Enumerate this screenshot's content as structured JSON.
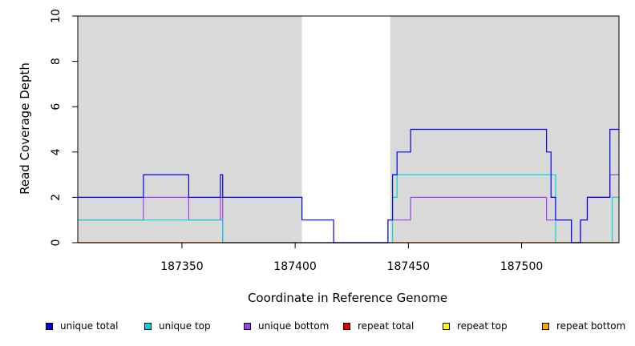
{
  "chart_data": {
    "type": "line",
    "xlabel": "Coordinate in Reference Genome",
    "ylabel": "Read Coverage Depth",
    "xlim": [
      187304,
      187543
    ],
    "ylim": [
      0,
      10
    ],
    "xticks": [
      187350,
      187400,
      187450,
      187500
    ],
    "yticks": [
      0,
      2,
      4,
      6,
      8,
      10
    ],
    "grid": false,
    "shaded_regions": [
      {
        "x": [
          187304,
          187403
        ],
        "color": "#d9d9d9"
      },
      {
        "x": [
          187442,
          187543
        ],
        "color": "#d9d9d9"
      }
    ],
    "series": [
      {
        "name": "unique total",
        "color": "#0000ee",
        "x": [
          187304,
          187333,
          187353,
          187367,
          187368,
          187403,
          187417,
          187441,
          187443,
          187445,
          187451,
          187511,
          187513,
          187515,
          187522,
          187526,
          187529,
          187539,
          187543
        ],
        "y": [
          2,
          3,
          2,
          3,
          2,
          1,
          0,
          1,
          3,
          4,
          5,
          4,
          2,
          1,
          0,
          1,
          2,
          5,
          5
        ]
      },
      {
        "name": "unique top",
        "color": "#00d8d8",
        "x": [
          187304,
          187367,
          187368,
          187441,
          187442,
          187443,
          187445,
          187513,
          187515,
          187539,
          187540,
          187543
        ],
        "y": [
          1,
          1,
          0,
          0,
          0,
          2,
          3,
          3,
          0,
          0,
          2,
          2
        ]
      },
      {
        "name": "unique bottom",
        "color": "#a040ee",
        "x": [
          187304,
          187333,
          187353,
          187367,
          187368,
          187403,
          187417,
          187441,
          187443,
          187451,
          187511,
          187513,
          187515,
          187522,
          187526,
          187529,
          187539,
          187543
        ],
        "y": [
          1,
          2,
          1,
          2,
          0,
          0,
          0,
          1,
          1,
          2,
          1,
          1,
          1,
          0,
          1,
          2,
          3,
          3
        ]
      },
      {
        "name": "repeat total",
        "color": "#ee0000",
        "x": [
          187304,
          187543
        ],
        "y": [
          0,
          0
        ]
      },
      {
        "name": "repeat top",
        "color": "#ffff00",
        "x": [
          187304,
          187543
        ],
        "y": [
          0,
          0
        ]
      },
      {
        "name": "repeat bottom",
        "color": "#ffa500",
        "x": [
          187304,
          187543
        ],
        "y": [
          0,
          0
        ]
      }
    ],
    "legend_position": "bottom"
  }
}
